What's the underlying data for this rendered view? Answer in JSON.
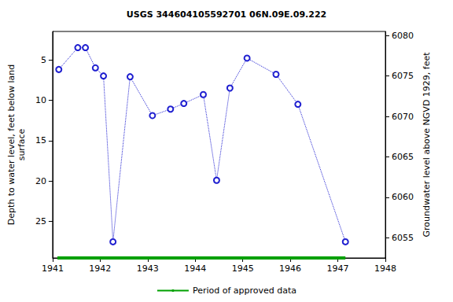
{
  "chart_data": {
    "type": "line",
    "title": "USGS 344604105592701 06N.09E.09.222",
    "y_label": "Depth to water level, feet below land\nsurface",
    "y2_label": "Groundwater level above NGVD 1929, feet",
    "x": [
      1941.13,
      1941.53,
      1941.69,
      1941.9,
      1942.07,
      1942.27,
      1942.63,
      1943.1,
      1943.48,
      1943.76,
      1944.17,
      1944.45,
      1944.73,
      1945.09,
      1945.7,
      1946.16,
      1947.16
    ],
    "values": [
      6.2,
      3.5,
      3.5,
      6.0,
      7.0,
      27.5,
      7.1,
      11.9,
      11.1,
      10.4,
      9.3,
      19.9,
      8.5,
      4.8,
      6.8,
      10.5,
      27.5
    ],
    "color": "#1f1fd0",
    "marker": "circle",
    "line_style": "dotted",
    "xlim": [
      1941,
      1948
    ],
    "xticks": [
      1941,
      1942,
      1943,
      1944,
      1945,
      1946,
      1947,
      1948
    ],
    "ylim": [
      29.5,
      1.5
    ],
    "yticks": [
      5,
      10,
      15,
      20,
      25
    ],
    "y2lim": [
      6052.5,
      6080.5
    ],
    "y2ticks": [
      6055,
      6060,
      6065,
      6070,
      6075,
      6080
    ],
    "approved_period": {
      "name": "Period of approved data",
      "x": [
        1941.1,
        1947.16
      ],
      "color": "#00a000"
    },
    "grid": false,
    "legend": "bottom"
  }
}
